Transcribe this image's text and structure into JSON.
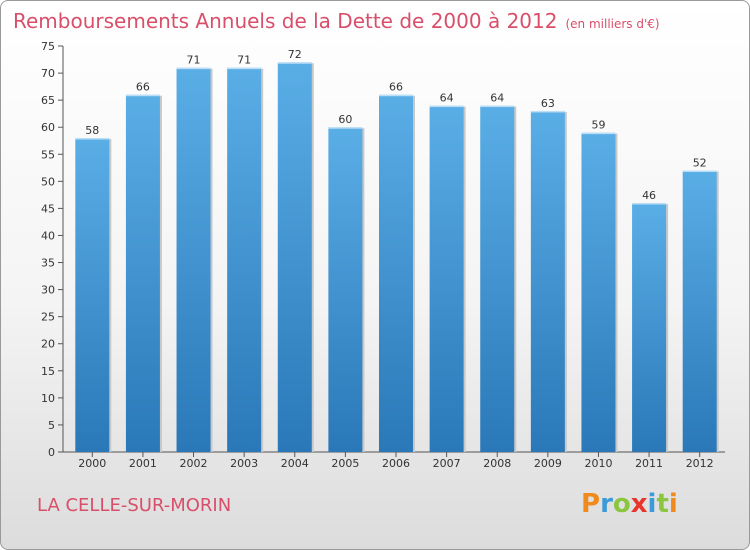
{
  "header": {
    "title": "Remboursements Annuels de la Dette de 2000 à 2012",
    "unit": "(en milliers d'€)"
  },
  "footer": {
    "commune": "LA CELLE-SUR-MORIN",
    "logo": "Proxiti"
  },
  "colors": {
    "title": "#d94f6a",
    "bar_top": "#5aaee6",
    "bar_bottom": "#2a78b8",
    "logo_letters": [
      "#f08a1c",
      "#3b9bd8",
      "#8cc63f",
      "#e8362d",
      "#3b9bd8",
      "#8cc63f",
      "#f08a1c"
    ]
  },
  "chart_data": {
    "type": "bar",
    "title": "Remboursements Annuels de la Dette de 2000 à 2012",
    "xlabel": "",
    "ylabel": "",
    "categories": [
      "2000",
      "2001",
      "2002",
      "2003",
      "2004",
      "2005",
      "2006",
      "2007",
      "2008",
      "2009",
      "2010",
      "2011",
      "2012"
    ],
    "values": [
      58,
      66,
      71,
      71,
      72,
      60,
      66,
      64,
      64,
      63,
      59,
      46,
      52
    ],
    "ylim": [
      0,
      75
    ],
    "yticks": [
      0,
      5,
      10,
      15,
      20,
      25,
      30,
      35,
      40,
      45,
      50,
      55,
      60,
      65,
      70,
      75
    ],
    "grid": false,
    "legend": "none"
  }
}
